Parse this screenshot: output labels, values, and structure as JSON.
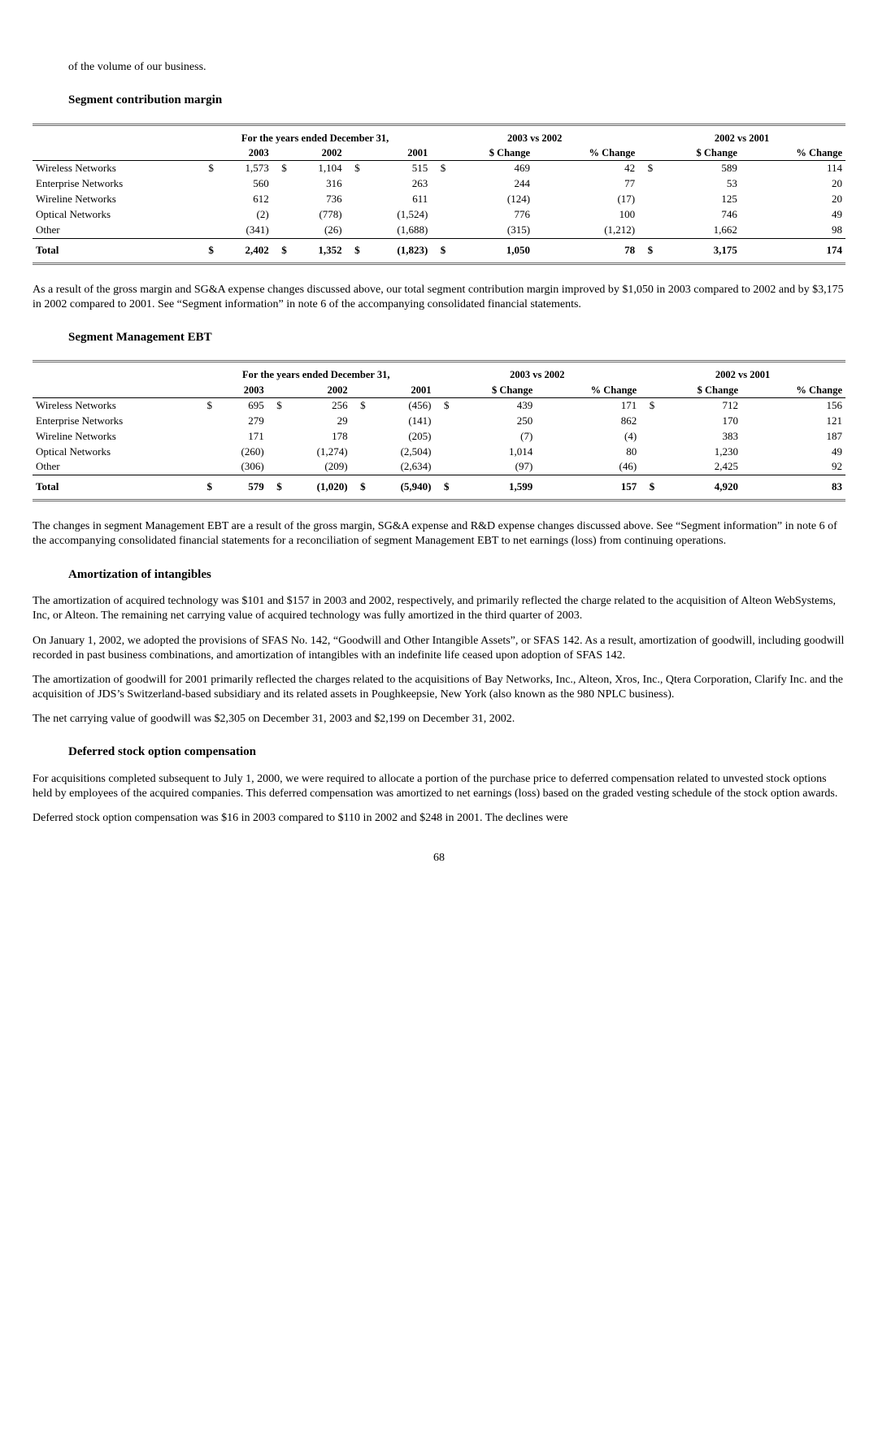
{
  "intro_fragment": "of the volume of our business.",
  "heading1": "Segment contribution margin",
  "table_headers": {
    "years_span": "For the years ended December 31,",
    "y2003": "2003",
    "y2002": "2002",
    "y2001": "2001",
    "cmp1_span": "2003 vs 2002",
    "cmp2_span": "2002 vs 2001",
    "dchange": "$ Change",
    "pchange": "% Change"
  },
  "t1": {
    "rows": [
      {
        "label": "Wireless Networks",
        "d": "$",
        "v03": "1,573",
        "d2": "$",
        "v02": "1,104",
        "d3": "$",
        "v01": "515",
        "d4": "$",
        "dc1": "469",
        "pc1": "42",
        "d5": "$",
        "dc2": "589",
        "pc2": "114"
      },
      {
        "label": "Enterprise Networks",
        "d": "",
        "v03": "560",
        "d2": "",
        "v02": "316",
        "d3": "",
        "v01": "263",
        "d4": "",
        "dc1": "244",
        "pc1": "77",
        "d5": "",
        "dc2": "53",
        "pc2": "20"
      },
      {
        "label": "Wireline Networks",
        "d": "",
        "v03": "612",
        "d2": "",
        "v02": "736",
        "d3": "",
        "v01": "611",
        "d4": "",
        "dc1": "(124)",
        "pc1": "(17)",
        "d5": "",
        "dc2": "125",
        "pc2": "20"
      },
      {
        "label": "Optical Networks",
        "d": "",
        "v03": "(2)",
        "d2": "",
        "v02": "(778)",
        "d3": "",
        "v01": "(1,524)",
        "d4": "",
        "dc1": "776",
        "pc1": "100",
        "d5": "",
        "dc2": "746",
        "pc2": "49"
      },
      {
        "label": "Other",
        "d": "",
        "v03": "(341)",
        "d2": "",
        "v02": "(26)",
        "d3": "",
        "v01": "(1,688)",
        "d4": "",
        "dc1": "(315)",
        "pc1": "(1,212)",
        "d5": "",
        "dc2": "1,662",
        "pc2": "98"
      }
    ],
    "total": {
      "label": "Total",
      "d": "$",
      "v03": "2,402",
      "d2": "$",
      "v02": "1,352",
      "d3": "$",
      "v01": "(1,823)",
      "d4": "$",
      "dc1": "1,050",
      "pc1": "78",
      "d5": "$",
      "dc2": "3,175",
      "pc2": "174"
    }
  },
  "para1": "As a result of the gross margin and SG&A expense changes discussed above, our total segment contribution margin improved by $1,050 in 2003 compared to 2002 and by $3,175 in 2002 compared to 2001. See “Segment information” in note 6 of the accompanying consolidated financial statements.",
  "heading2": "Segment Management EBT",
  "t2": {
    "rows": [
      {
        "label": "Wireless Networks",
        "d": "$",
        "v03": "695",
        "d2": "$",
        "v02": "256",
        "d3": "$",
        "v01": "(456)",
        "d4": "$",
        "dc1": "439",
        "pc1": "171",
        "d5": "$",
        "dc2": "712",
        "pc2": "156"
      },
      {
        "label": "Enterprise Networks",
        "d": "",
        "v03": "279",
        "d2": "",
        "v02": "29",
        "d3": "",
        "v01": "(141)",
        "d4": "",
        "dc1": "250",
        "pc1": "862",
        "d5": "",
        "dc2": "170",
        "pc2": "121"
      },
      {
        "label": "Wireline Networks",
        "d": "",
        "v03": "171",
        "d2": "",
        "v02": "178",
        "d3": "",
        "v01": "(205)",
        "d4": "",
        "dc1": "(7)",
        "pc1": "(4)",
        "d5": "",
        "dc2": "383",
        "pc2": "187"
      },
      {
        "label": "Optical Networks",
        "d": "",
        "v03": "(260)",
        "d2": "",
        "v02": "(1,274)",
        "d3": "",
        "v01": "(2,504)",
        "d4": "",
        "dc1": "1,014",
        "pc1": "80",
        "d5": "",
        "dc2": "1,230",
        "pc2": "49"
      },
      {
        "label": "Other",
        "d": "",
        "v03": "(306)",
        "d2": "",
        "v02": "(209)",
        "d3": "",
        "v01": "(2,634)",
        "d4": "",
        "dc1": "(97)",
        "pc1": "(46)",
        "d5": "",
        "dc2": "2,425",
        "pc2": "92"
      }
    ],
    "total": {
      "label": "Total",
      "d": "$",
      "v03": "579",
      "d2": "$",
      "v02": "(1,020)",
      "d3": "$",
      "v01": "(5,940)",
      "d4": "$",
      "dc1": "1,599",
      "pc1": "157",
      "d5": "$",
      "dc2": "4,920",
      "pc2": "83"
    }
  },
  "para2": "The changes in segment Management EBT are a result of the gross margin, SG&A expense and R&D expense changes discussed above. See “Segment information” in note 6 of the accompanying consolidated financial statements for a reconciliation of segment Management EBT to net earnings (loss) from continuing operations.",
  "heading3": "Amortization of intangibles",
  "para3a": "The amortization of acquired technology was $101 and $157 in 2003 and 2002, respectively, and primarily reflected the charge related to the acquisition of Alteon WebSystems, Inc, or Alteon. The remaining net carrying value of acquired technology was fully amortized in the third quarter of 2003.",
  "para3b": "On January 1, 2002, we adopted the provisions of SFAS No. 142, “Goodwill and Other Intangible Assets”, or SFAS 142. As a result, amortization of goodwill, including goodwill recorded in past business combinations, and amortization of intangibles with an indefinite life ceased upon adoption of SFAS 142.",
  "para3c": "The amortization of goodwill for 2001 primarily reflected the charges related to the acquisitions of Bay Networks, Inc., Alteon, Xros, Inc., Qtera Corporation, Clarify Inc. and the acquisition of JDS’s Switzerland-based subsidiary and its related assets in Poughkeepsie, New York (also known as the 980 NPLC business).",
  "para3d": "The net carrying value of goodwill was $2,305 on December 31, 2003 and $2,199 on December 31, 2002.",
  "heading4": "Deferred stock option compensation",
  "para4a": "For acquisitions completed subsequent to July 1, 2000, we were required to allocate a portion of the purchase price to deferred compensation related to unvested stock options held by employees of the acquired companies. This deferred compensation was amortized to net earnings (loss) based on the graded vesting schedule of the stock option awards.",
  "para4b": "Deferred stock option compensation was $16 in 2003 compared to $110 in 2002 and $248 in 2001. The declines were",
  "page_number": "68"
}
